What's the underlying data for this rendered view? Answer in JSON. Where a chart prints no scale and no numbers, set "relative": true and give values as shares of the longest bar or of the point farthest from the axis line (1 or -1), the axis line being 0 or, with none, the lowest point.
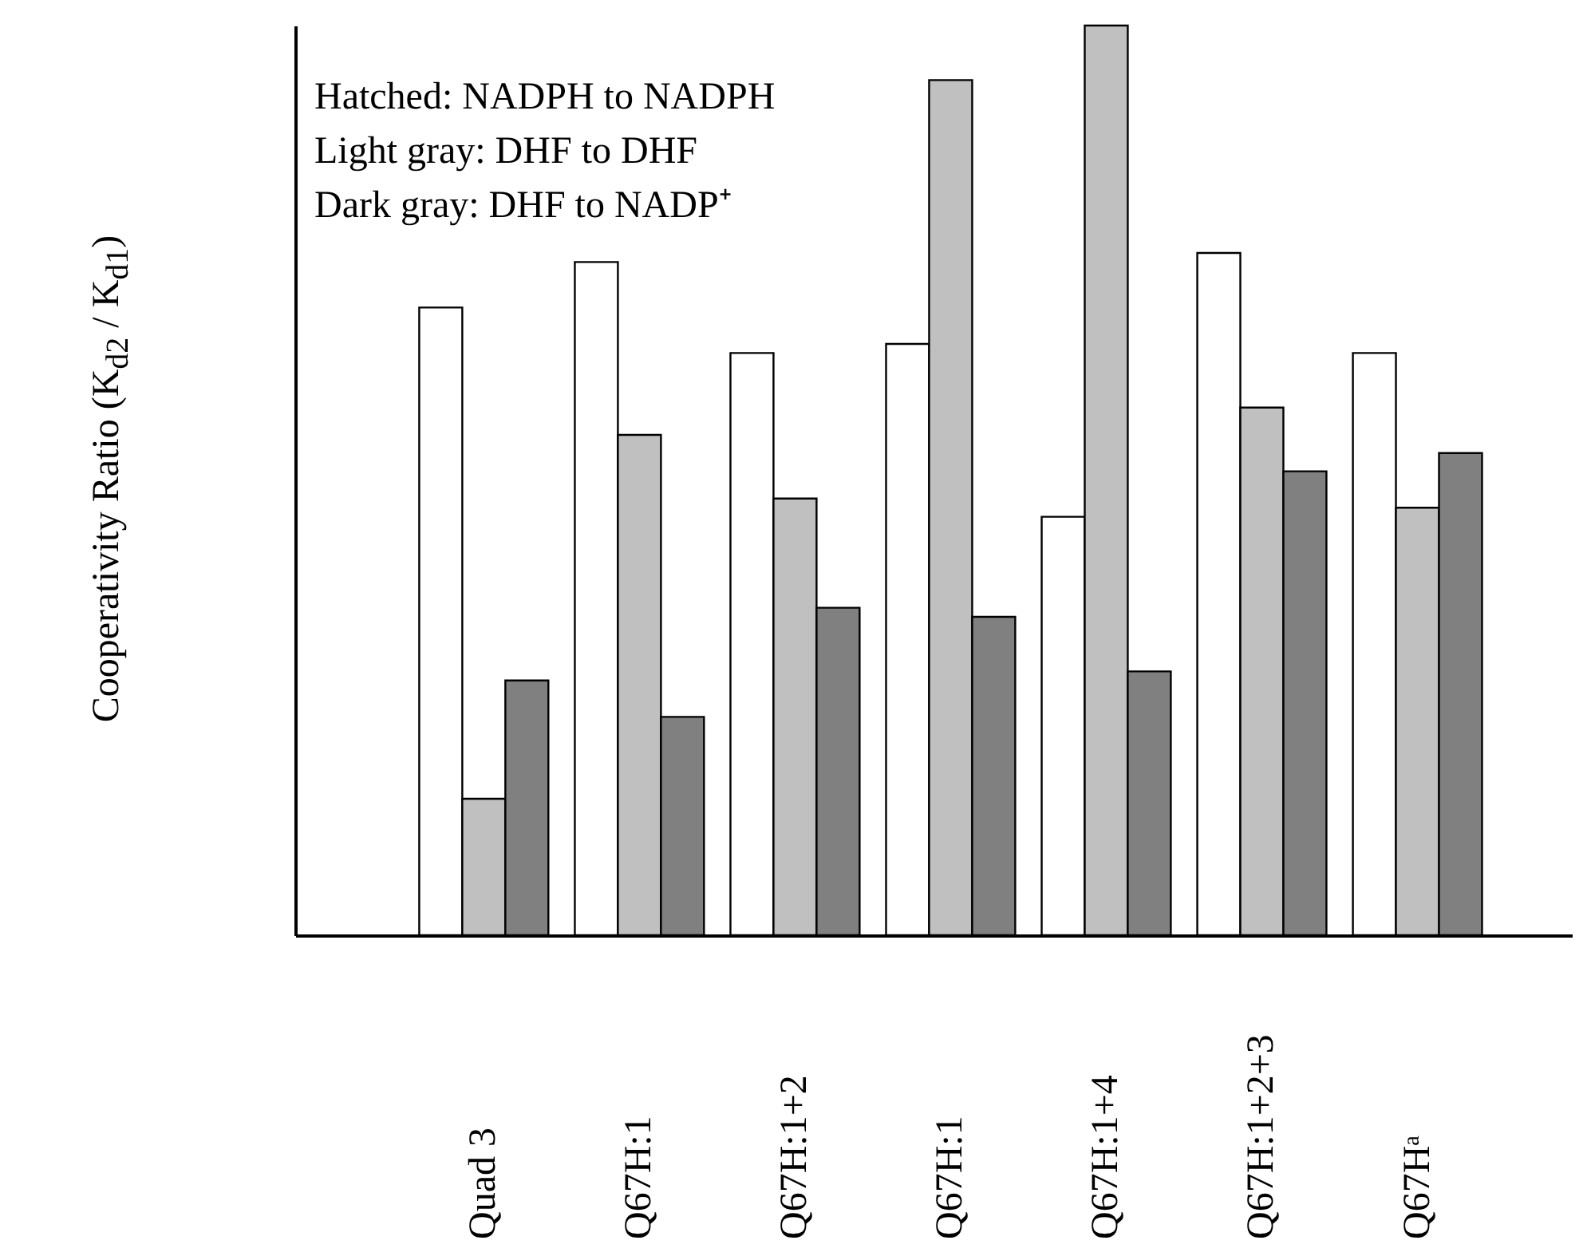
{
  "chart_data": {
    "type": "bar",
    "relative": true,
    "ylabel": "Cooperativity Ratio (K$_{d2}$ / K$_{d1}$)",
    "categories": [
      "Quad 3",
      "Q67H:1",
      "Q67H:1+2",
      "Q67H:1",
      "Q67H:1+4",
      "Q67H:1+2+3",
      "Q67Hᵃ"
    ],
    "series": [
      {
        "color": "#ffffff",
        "values": [
          0.69,
          0.74,
          0.64,
          0.65,
          0.46,
          0.75,
          0.64
        ]
      },
      {
        "color": "#c0c0c0",
        "values": [
          0.15,
          0.55,
          0.48,
          0.94,
          1,
          0.58,
          0.47
        ]
      },
      {
        "color": "#808080",
        "values": [
          0.28,
          0.24,
          0.36,
          0.35,
          0.29,
          0.51,
          0.53
        ]
      }
    ],
    "annotations": [
      "Hatched: NADPH to NADPH",
      "Light gray: DHF  to DHF",
      "Dark gray: DHF to NADP⁺"
    ],
    "legend": false,
    "grid": false
  }
}
